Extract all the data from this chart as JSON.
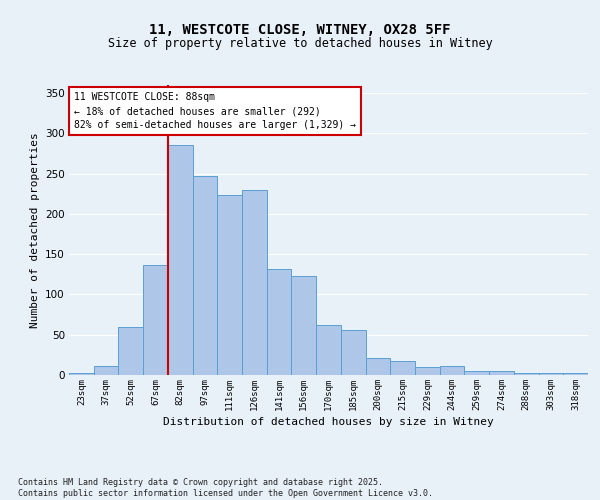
{
  "title_line1": "11, WESTCOTE CLOSE, WITNEY, OX28 5FF",
  "title_line2": "Size of property relative to detached houses in Witney",
  "xlabel": "Distribution of detached houses by size in Witney",
  "ylabel": "Number of detached properties",
  "categories": [
    "23sqm",
    "37sqm",
    "52sqm",
    "67sqm",
    "82sqm",
    "97sqm",
    "111sqm",
    "126sqm",
    "141sqm",
    "156sqm",
    "170sqm",
    "185sqm",
    "200sqm",
    "215sqm",
    "229sqm",
    "244sqm",
    "259sqm",
    "274sqm",
    "288sqm",
    "303sqm",
    "318sqm"
  ],
  "bar_values": [
    2,
    11,
    59,
    136,
    285,
    247,
    224,
    230,
    131,
    123,
    62,
    56,
    21,
    17,
    10,
    11,
    5,
    5,
    2,
    2,
    2
  ],
  "bar_color": "#aec6e8",
  "bar_edgecolor": "#5a9fd4",
  "background_color": "#e8f0f8",
  "grid_color": "#ffffff",
  "vline_x_index": 4,
  "vline_color": "#cc0000",
  "annotation_text": "11 WESTCOTE CLOSE: 88sqm\n← 18% of detached houses are smaller (292)\n82% of semi-detached houses are larger (1,329) →",
  "annotation_box_color": "#ffffff",
  "annotation_box_edgecolor": "#cc0000",
  "ylim": [
    0,
    360
  ],
  "yticks": [
    0,
    50,
    100,
    150,
    200,
    250,
    300,
    350
  ],
  "footer": "Contains HM Land Registry data © Crown copyright and database right 2025.\nContains public sector information licensed under the Open Government Licence v3.0.",
  "fig_width": 6.0,
  "fig_height": 5.0,
  "dpi": 100
}
